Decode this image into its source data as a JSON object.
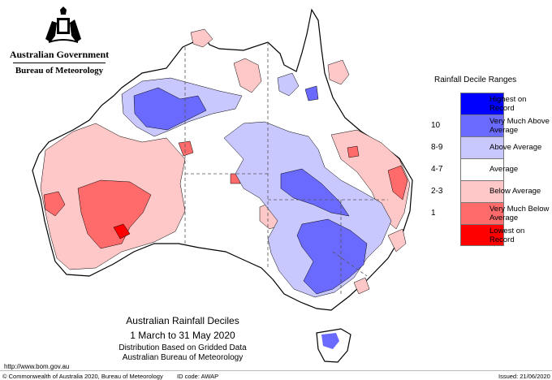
{
  "header": {
    "government": "Australian Government",
    "bureau": "Bureau of Meteorology"
  },
  "legend": {
    "title": "Rainfall Decile Ranges",
    "items": [
      {
        "code": "",
        "label": "Highest on Record",
        "color": "#0000ff"
      },
      {
        "code": "10",
        "label": "Very Much Above Average",
        "color": "#6a6aff"
      },
      {
        "code": "8-9",
        "label": "Above Average",
        "color": "#c8c8ff"
      },
      {
        "code": "4-7",
        "label": "Average",
        "color": "#ffffff"
      },
      {
        "code": "2-3",
        "label": "Below Average",
        "color": "#ffc8c8"
      },
      {
        "code": "1",
        "label": "Very Much Below Average",
        "color": "#ff6a6a"
      },
      {
        "code": "",
        "label": "Lowest on Record",
        "color": "#ff0000"
      }
    ]
  },
  "caption": {
    "title": "Australian Rainfall Deciles",
    "period": "1 March to 31 May 2020",
    "method": "Distribution Based on Gridded Data",
    "source": "Australian Bureau of Meteorology"
  },
  "footer": {
    "url": "http://www.bom.gov.au",
    "copyright": "© Commonwealth of Australia 2020, Bureau of Meteorology",
    "id_code": "ID code: AWAP",
    "issued": "Issued: 21/06/2020"
  }
}
